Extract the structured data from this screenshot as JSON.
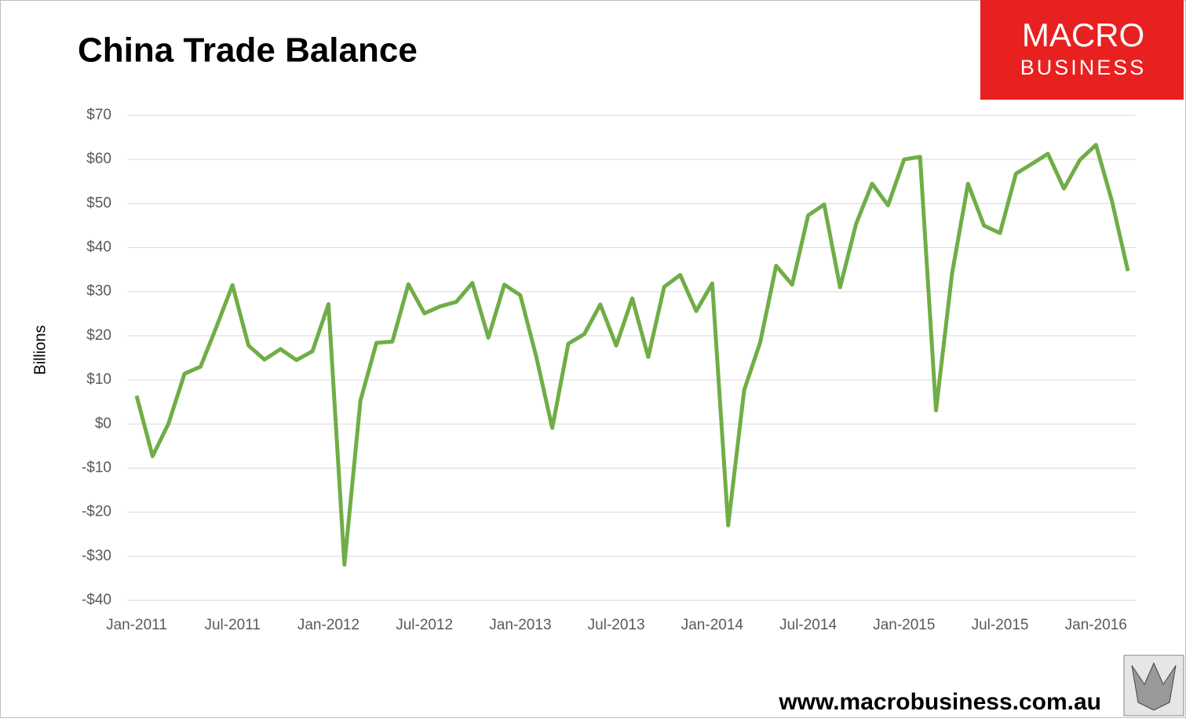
{
  "chart_data": {
    "type": "line",
    "title": "China Trade Balance",
    "y_label": "Billions",
    "categories": [
      "Jan-2011",
      null,
      null,
      null,
      null,
      null,
      "Jul-2011",
      null,
      null,
      null,
      null,
      null,
      "Jan-2012",
      null,
      null,
      null,
      null,
      null,
      "Jul-2012",
      null,
      null,
      null,
      null,
      null,
      "Jan-2013",
      null,
      null,
      null,
      null,
      null,
      "Jul-2013",
      null,
      null,
      null,
      null,
      null,
      "Jan-2014",
      null,
      null,
      null,
      null,
      null,
      "Jul-2014",
      null,
      null,
      null,
      null,
      null,
      "Jan-2015",
      null,
      null,
      null,
      null,
      null,
      "Jul-2015",
      null,
      null,
      null,
      null,
      null,
      "Jan-2016",
      null,
      null
    ],
    "values": [
      6.4,
      -7.3,
      0.1,
      11.4,
      13.0,
      22.1,
      31.5,
      17.8,
      14.6,
      17.0,
      14.5,
      16.5,
      27.2,
      -31.9,
      5.3,
      18.4,
      18.7,
      31.7,
      25.1,
      26.7,
      27.7,
      32.0,
      19.6,
      31.6,
      29.2,
      15.2,
      -0.9,
      18.2,
      20.4,
      27.1,
      17.8,
      28.5,
      15.2,
      31.1,
      33.8,
      25.6,
      31.9,
      -23.0,
      7.7,
      18.5,
      35.9,
      31.6,
      47.3,
      49.8,
      31.0,
      45.4,
      54.5,
      49.6,
      60.0,
      60.6,
      3.1,
      34.1,
      54.5,
      45.0,
      43.3,
      56.8,
      59.0,
      61.3,
      53.4,
      59.9,
      63.3,
      50.6,
      34.7
    ],
    "color": "#70ad47",
    "ylim": [
      -40,
      70
    ],
    "yticks": [
      {
        "value": -40,
        "label": "-$40"
      },
      {
        "value": -30,
        "label": "-$30"
      },
      {
        "value": -20,
        "label": "-$20"
      },
      {
        "value": -10,
        "label": "-$10"
      },
      {
        "value": 0,
        "label": "$0"
      },
      {
        "value": 10,
        "label": "$10"
      },
      {
        "value": 20,
        "label": "$20"
      },
      {
        "value": 30,
        "label": "$30"
      },
      {
        "value": 40,
        "label": "$40"
      },
      {
        "value": 50,
        "label": "$50"
      },
      {
        "value": 60,
        "label": "$60"
      },
      {
        "value": 70,
        "label": "$70"
      }
    ],
    "grid": true
  },
  "branding": {
    "logo_top": "MACRO",
    "logo_bottom": "BUSINESS",
    "url": "www.macrobusiness.com.au"
  }
}
